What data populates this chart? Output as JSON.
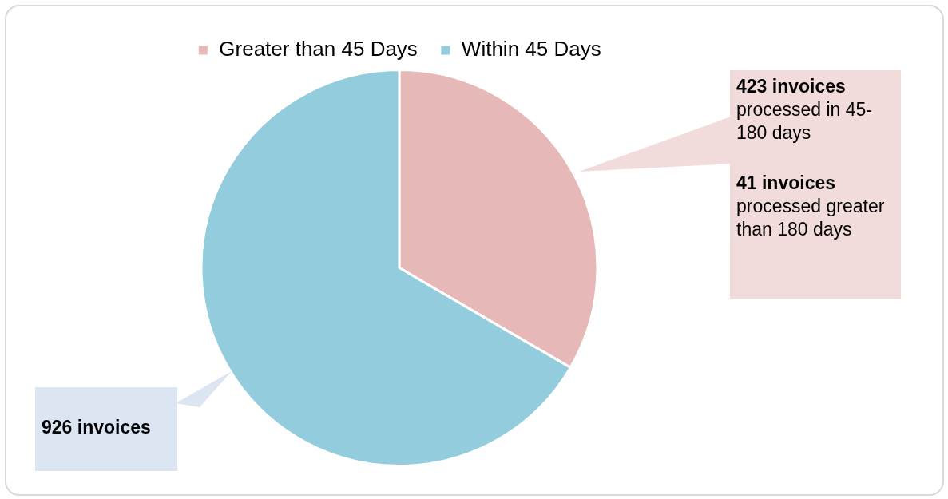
{
  "chart_data": {
    "type": "pie",
    "categories": [
      "Greater than 45 Days",
      "Within 45 Days"
    ],
    "values": [
      33.4,
      66.6
    ],
    "colors": [
      "#e6b8b7",
      "#93cddd"
    ],
    "legend": "top",
    "annotations": [
      "423 invoices",
      "processed in 45-180 days",
      "41 invoices",
      "processed greater than 180 days",
      "926 invoices"
    ]
  }
}
